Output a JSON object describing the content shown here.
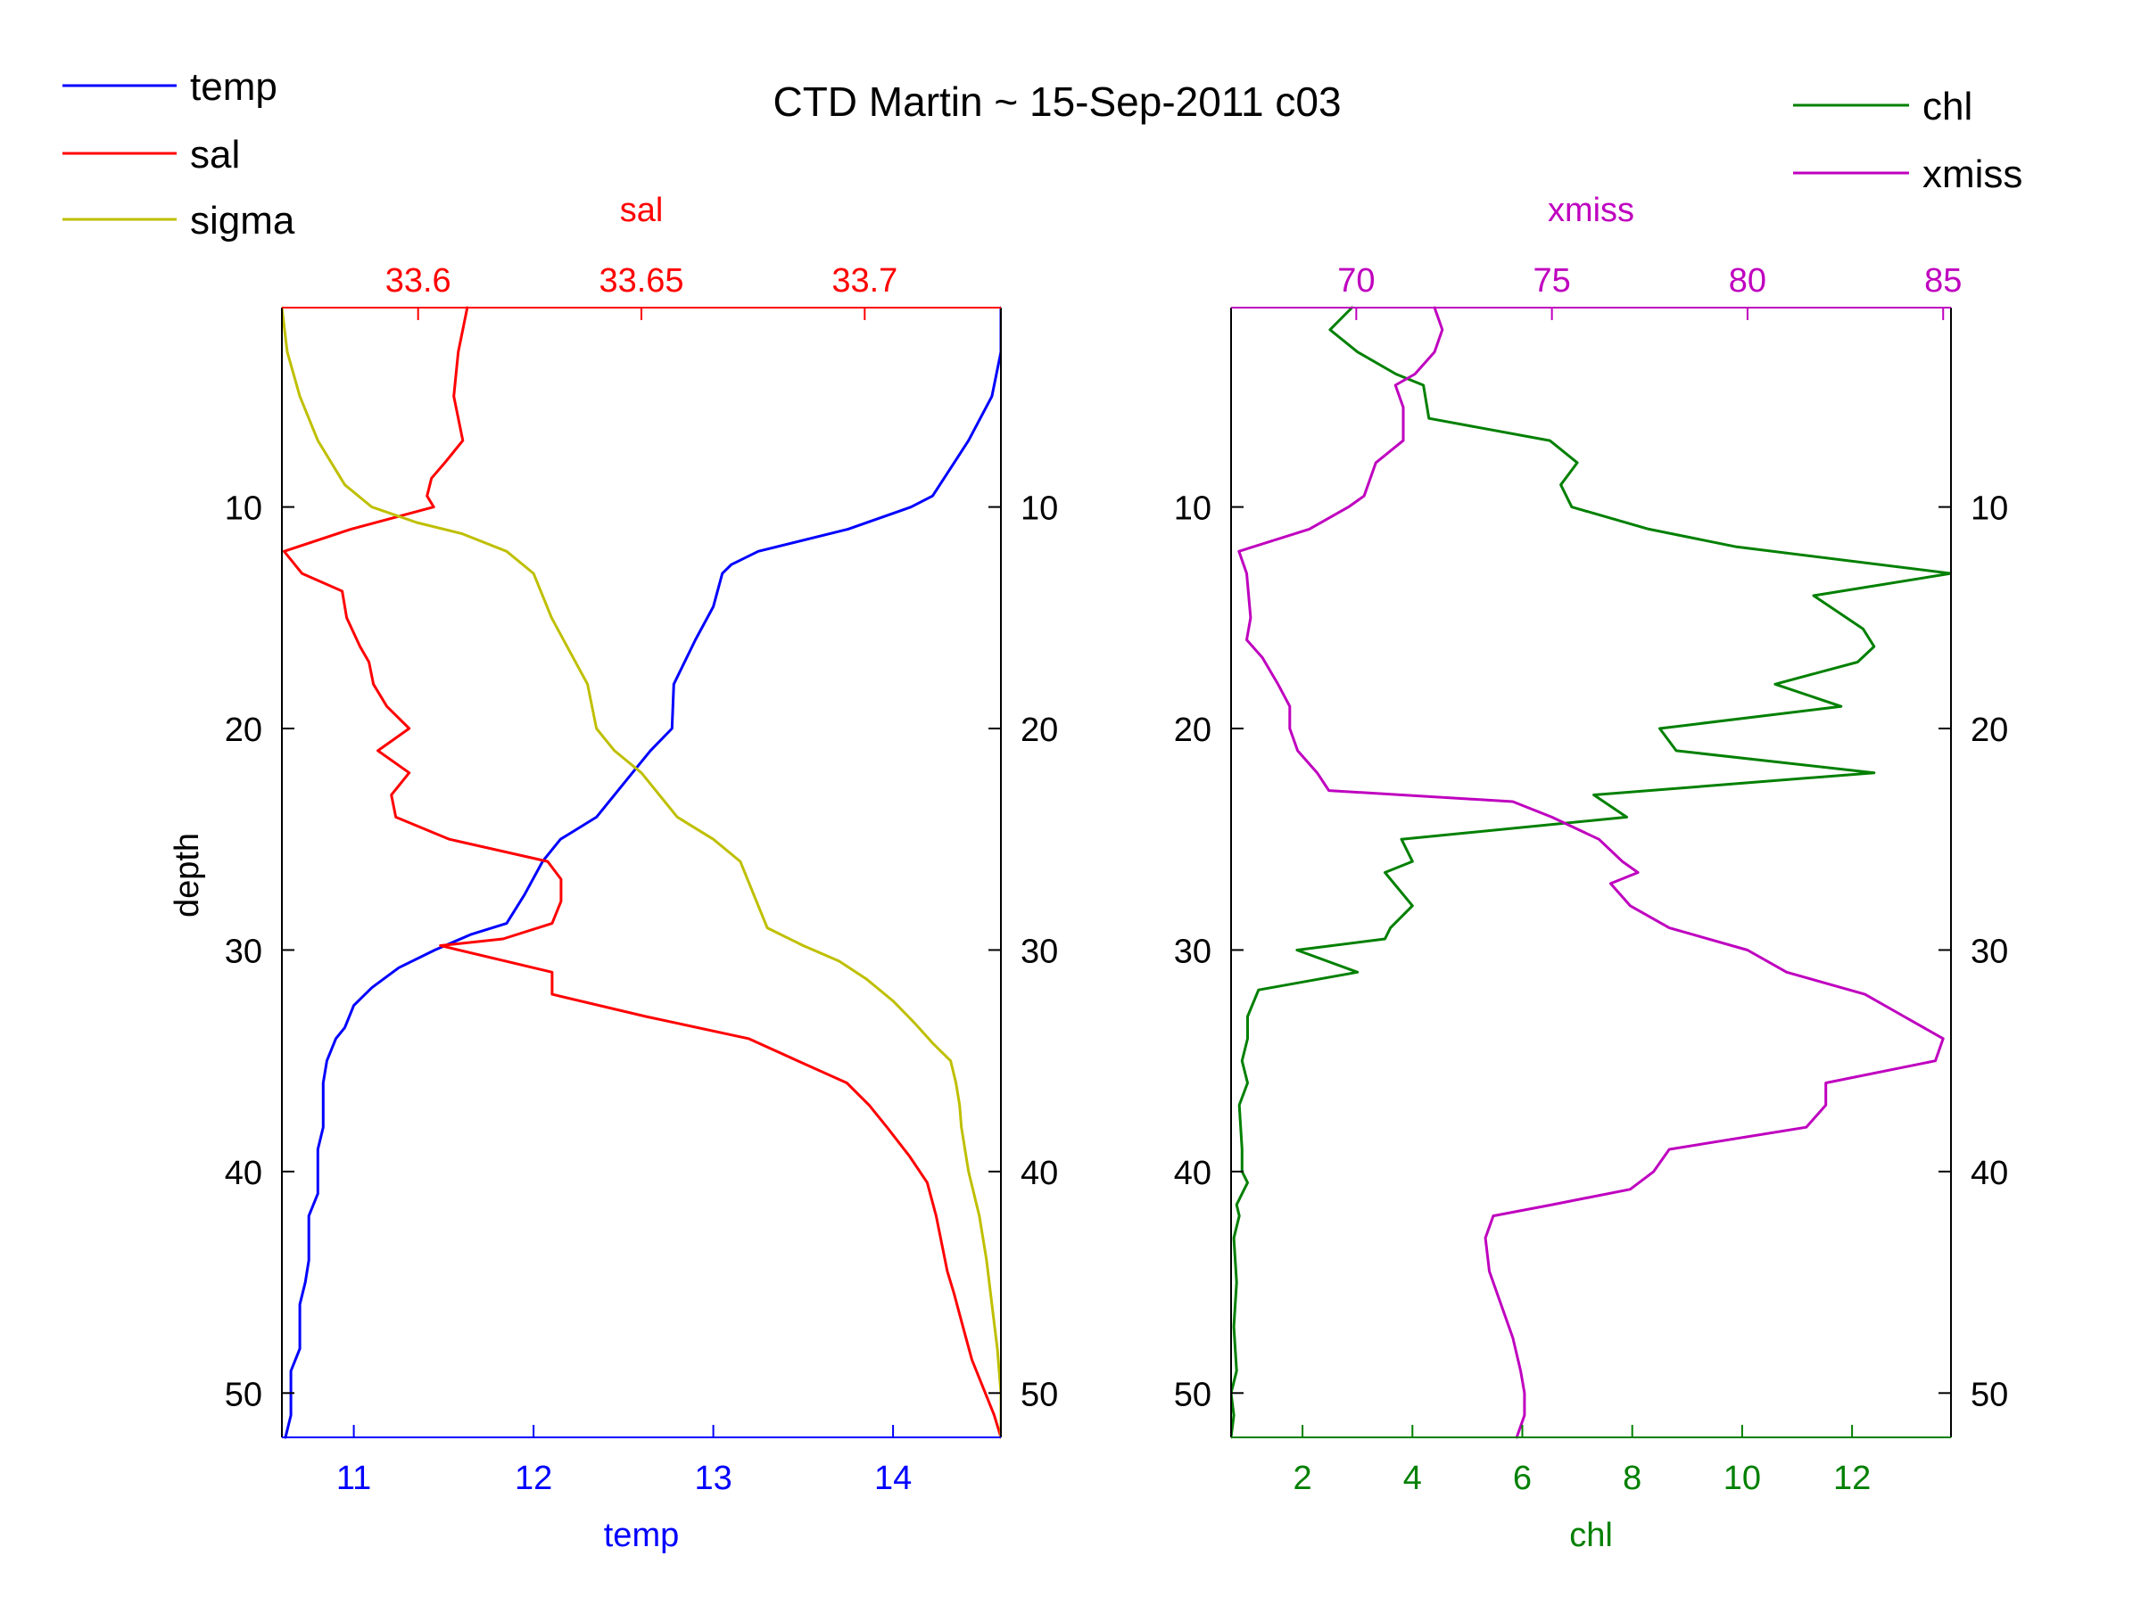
{
  "title": "CTD Martin ~ 15-Sep-2011 c03",
  "colors": {
    "temp": "#0000ff",
    "sal": "#ff0000",
    "sigma": "#bfbf00",
    "chl": "#008000",
    "xmiss": "#bf00bf",
    "axis": "#000000"
  },
  "legend_left": [
    {
      "label": "temp",
      "color": "#0000ff"
    },
    {
      "label": "sal",
      "color": "#ff0000"
    },
    {
      "label": "sigma",
      "color": "#bfbf00"
    }
  ],
  "legend_right": [
    {
      "label": "chl",
      "color": "#008000"
    },
    {
      "label": "xmiss",
      "color": "#bf00bf"
    }
  ],
  "chart_data": [
    {
      "type": "line",
      "panel": "left",
      "ylabel": "depth",
      "ylim": [
        1,
        52
      ],
      "y_reversed": true,
      "yticks": [
        10,
        20,
        30,
        40,
        50
      ],
      "bottom_axis": {
        "label": "temp",
        "lim": [
          10.6,
          14.6
        ],
        "ticks": [
          11,
          12,
          13,
          14
        ]
      },
      "top_axis": {
        "label": "sal",
        "lim": [
          33.5695,
          33.7305
        ],
        "ticks": [
          "33.6",
          "33.65",
          "33.7"
        ]
      },
      "series": [
        {
          "name": "temp",
          "axis": "bottom",
          "points": [
            [
              14.6,
              1
            ],
            [
              14.6,
              3
            ],
            [
              14.55,
              5
            ],
            [
              14.42,
              7
            ],
            [
              14.34,
              8
            ],
            [
              14.22,
              9.5
            ],
            [
              14.1,
              10
            ],
            [
              13.75,
              11
            ],
            [
              13.25,
              12
            ],
            [
              13.1,
              12.6
            ],
            [
              13.05,
              13
            ],
            [
              13.0,
              14.5
            ],
            [
              12.9,
              16
            ],
            [
              12.78,
              18
            ],
            [
              12.77,
              20
            ],
            [
              12.65,
              21
            ],
            [
              12.55,
              22
            ],
            [
              12.45,
              23
            ],
            [
              12.35,
              24
            ],
            [
              12.15,
              25
            ],
            [
              12.05,
              26
            ],
            [
              11.95,
              27.5
            ],
            [
              11.85,
              28.8
            ],
            [
              11.65,
              29.3
            ],
            [
              11.45,
              30
            ],
            [
              11.25,
              30.8
            ],
            [
              11.1,
              31.7
            ],
            [
              11.0,
              32.5
            ],
            [
              10.95,
              33.5
            ],
            [
              10.9,
              34
            ],
            [
              10.85,
              35
            ],
            [
              10.83,
              36
            ],
            [
              10.83,
              38
            ],
            [
              10.8,
              39
            ],
            [
              10.8,
              40
            ],
            [
              10.8,
              41
            ],
            [
              10.75,
              42
            ],
            [
              10.75,
              44
            ],
            [
              10.73,
              45
            ],
            [
              10.7,
              46
            ],
            [
              10.7,
              48
            ],
            [
              10.65,
              49
            ],
            [
              10.65,
              51
            ],
            [
              10.62,
              52
            ]
          ]
        },
        {
          "name": "sal",
          "axis": "top",
          "points": [
            [
              33.611,
              1
            ],
            [
              33.609,
              3
            ],
            [
              33.608,
              5
            ],
            [
              33.61,
              7
            ],
            [
              33.606,
              8
            ],
            [
              33.603,
              8.7
            ],
            [
              33.602,
              9.5
            ],
            [
              33.6035,
              10
            ],
            [
              33.585,
              11
            ],
            [
              33.57,
              12
            ],
            [
              33.574,
              13
            ],
            [
              33.583,
              13.8
            ],
            [
              33.584,
              15
            ],
            [
              33.587,
              16.3
            ],
            [
              33.589,
              17
            ],
            [
              33.59,
              18
            ],
            [
              33.593,
              19
            ],
            [
              33.598,
              20
            ],
            [
              33.591,
              21
            ],
            [
              33.598,
              22
            ],
            [
              33.594,
              23
            ],
            [
              33.595,
              24
            ],
            [
              33.607,
              25
            ],
            [
              33.629,
              26
            ],
            [
              33.632,
              26.8
            ],
            [
              33.632,
              27.8
            ],
            [
              33.63,
              28.8
            ],
            [
              33.619,
              29.5
            ],
            [
              33.605,
              29.8
            ],
            [
              33.63,
              31
            ],
            [
              33.63,
              32
            ],
            [
              33.651,
              33
            ],
            [
              33.674,
              34
            ],
            [
              33.685,
              35
            ],
            [
              33.696,
              36
            ],
            [
              33.701,
              37
            ],
            [
              33.705,
              38
            ],
            [
              33.71,
              39.3
            ],
            [
              33.714,
              40.5
            ],
            [
              33.716,
              42
            ],
            [
              33.717,
              43
            ],
            [
              33.7185,
              44.5
            ],
            [
              33.72,
              45.5
            ],
            [
              33.722,
              47
            ],
            [
              33.724,
              48.5
            ],
            [
              33.727,
              50
            ],
            [
              33.729,
              51
            ],
            [
              33.7305,
              52
            ]
          ]
        },
        {
          "name": "sigma",
          "axis": "bottom",
          "points": [
            [
              10.6,
              1
            ],
            [
              10.63,
              3
            ],
            [
              10.7,
              5
            ],
            [
              10.8,
              7
            ],
            [
              10.95,
              9
            ],
            [
              11.1,
              10
            ],
            [
              11.35,
              10.7
            ],
            [
              11.6,
              11.2
            ],
            [
              11.85,
              12
            ],
            [
              12.0,
              13
            ],
            [
              12.1,
              15
            ],
            [
              12.2,
              16.5
            ],
            [
              12.3,
              18
            ],
            [
              12.35,
              20
            ],
            [
              12.45,
              21
            ],
            [
              12.6,
              22
            ],
            [
              12.7,
              23
            ],
            [
              12.8,
              24
            ],
            [
              13.0,
              25
            ],
            [
              13.15,
              26
            ],
            [
              13.2,
              27
            ],
            [
              13.25,
              28
            ],
            [
              13.3,
              29
            ],
            [
              13.5,
              29.8
            ],
            [
              13.7,
              30.5
            ],
            [
              13.85,
              31.3
            ],
            [
              14.0,
              32.3
            ],
            [
              14.12,
              33.3
            ],
            [
              14.22,
              34.2
            ],
            [
              14.32,
              35
            ],
            [
              14.35,
              36
            ],
            [
              14.37,
              37
            ],
            [
              14.38,
              38
            ],
            [
              14.42,
              40
            ],
            [
              14.48,
              42
            ],
            [
              14.52,
              44
            ],
            [
              14.55,
              46
            ],
            [
              14.58,
              48
            ],
            [
              14.6,
              50
            ],
            [
              14.6,
              52
            ]
          ]
        }
      ]
    },
    {
      "type": "line",
      "panel": "right",
      "ylabel": "",
      "ylim": [
        1,
        52
      ],
      "y_reversed": true,
      "yticks": [
        10,
        20,
        30,
        40,
        50
      ],
      "bottom_axis": {
        "label": "chl",
        "lim": [
          0.7,
          13.8
        ],
        "ticks": [
          2,
          4,
          6,
          8,
          10,
          12
        ]
      },
      "top_axis": {
        "label": "xmiss",
        "lim": [
          66.8,
          85.2
        ],
        "ticks": [
          70,
          75,
          80,
          85
        ]
      },
      "series": [
        {
          "name": "chl",
          "axis": "bottom",
          "points": [
            [
              2.9,
              1
            ],
            [
              2.5,
              2
            ],
            [
              3.0,
              3
            ],
            [
              3.7,
              4
            ],
            [
              4.2,
              4.5
            ],
            [
              4.3,
              6
            ],
            [
              6.5,
              7
            ],
            [
              7.0,
              8
            ],
            [
              6.7,
              9
            ],
            [
              6.9,
              10
            ],
            [
              8.3,
              11
            ],
            [
              9.9,
              11.8
            ],
            [
              13.8,
              13
            ],
            [
              11.3,
              14
            ],
            [
              12.2,
              15.5
            ],
            [
              12.4,
              16.3
            ],
            [
              12.1,
              17
            ],
            [
              10.6,
              18
            ],
            [
              11.8,
              19
            ],
            [
              8.5,
              20
            ],
            [
              8.8,
              21
            ],
            [
              12.4,
              22
            ],
            [
              7.3,
              23
            ],
            [
              7.9,
              24
            ],
            [
              3.8,
              25
            ],
            [
              4.0,
              26
            ],
            [
              3.5,
              26.5
            ],
            [
              4.0,
              28
            ],
            [
              3.6,
              29
            ],
            [
              3.5,
              29.5
            ],
            [
              1.9,
              30
            ],
            [
              3.0,
              31
            ],
            [
              1.2,
              31.8
            ],
            [
              1.0,
              33
            ],
            [
              1.0,
              34
            ],
            [
              0.9,
              35
            ],
            [
              1.0,
              36
            ],
            [
              0.85,
              37
            ],
            [
              0.9,
              39
            ],
            [
              0.9,
              40
            ],
            [
              1.0,
              40.5
            ],
            [
              0.8,
              41.5
            ],
            [
              0.85,
              42
            ],
            [
              0.75,
              43
            ],
            [
              0.8,
              45
            ],
            [
              0.75,
              47
            ],
            [
              0.8,
              49
            ],
            [
              0.7,
              50
            ],
            [
              0.75,
              51
            ],
            [
              0.7,
              52
            ]
          ]
        },
        {
          "name": "xmiss",
          "axis": "top",
          "points": [
            [
              72.0,
              1
            ],
            [
              72.2,
              2
            ],
            [
              72.0,
              3
            ],
            [
              71.5,
              4
            ],
            [
              71.0,
              4.5
            ],
            [
              71.2,
              5.5
            ],
            [
              71.2,
              7
            ],
            [
              70.5,
              8
            ],
            [
              70.2,
              9.5
            ],
            [
              69.8,
              10
            ],
            [
              68.8,
              11
            ],
            [
              67.0,
              12
            ],
            [
              67.2,
              13
            ],
            [
              67.3,
              15
            ],
            [
              67.2,
              16
            ],
            [
              67.6,
              16.8
            ],
            [
              68.0,
              18
            ],
            [
              68.3,
              19
            ],
            [
              68.3,
              20
            ],
            [
              68.5,
              21
            ],
            [
              69.0,
              22
            ],
            [
              69.3,
              22.8
            ],
            [
              74.0,
              23.3
            ],
            [
              75.0,
              24
            ],
            [
              76.2,
              25
            ],
            [
              76.8,
              26
            ],
            [
              77.2,
              26.5
            ],
            [
              76.5,
              27
            ],
            [
              77.0,
              28
            ],
            [
              78.0,
              29
            ],
            [
              80.0,
              30
            ],
            [
              81.0,
              31
            ],
            [
              83.0,
              32
            ],
            [
              84.0,
              33
            ],
            [
              85.0,
              34
            ],
            [
              84.8,
              35
            ],
            [
              82.0,
              36
            ],
            [
              82.0,
              37
            ],
            [
              81.5,
              38
            ],
            [
              78.0,
              39
            ],
            [
              77.6,
              40
            ],
            [
              77.0,
              40.8
            ],
            [
              75.0,
              41.5
            ],
            [
              73.5,
              42
            ],
            [
              73.3,
              43
            ],
            [
              73.4,
              44.5
            ],
            [
              73.7,
              46
            ],
            [
              74.0,
              47.5
            ],
            [
              74.2,
              49
            ],
            [
              74.3,
              50
            ],
            [
              74.3,
              51
            ],
            [
              74.1,
              52
            ]
          ]
        }
      ]
    }
  ]
}
